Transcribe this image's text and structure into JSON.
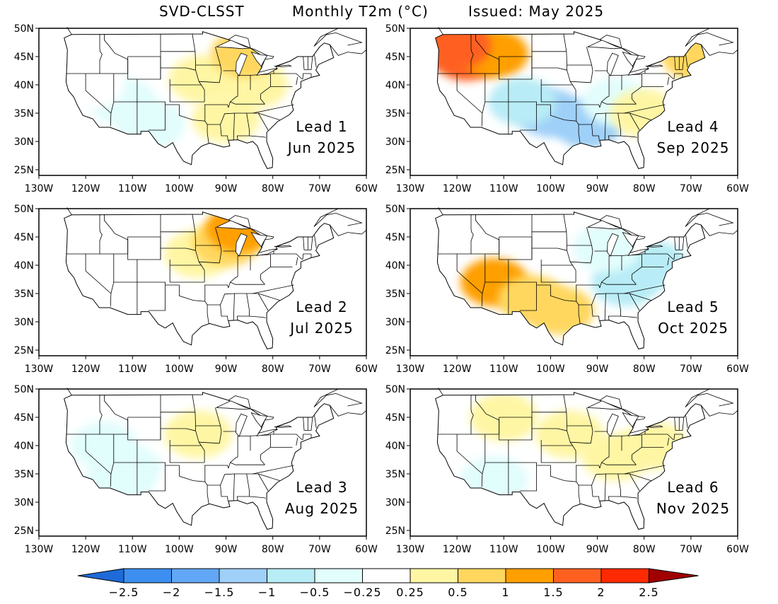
{
  "title": {
    "model": "SVD-CLSST",
    "variable": "Monthly T2m (°C)",
    "issued": "Issued: May 2025"
  },
  "axes": {
    "lon_ticks": [
      "130W",
      "120W",
      "110W",
      "100W",
      "90W",
      "80W",
      "70W",
      "60W"
    ],
    "lat_ticks": [
      "50N",
      "45N",
      "40N",
      "35N",
      "30N",
      "25N"
    ]
  },
  "panels": [
    {
      "lead_label": "Lead 1",
      "month_label": "Jun 2025",
      "anomalies": [
        {
          "lon": -112,
          "lat": 37,
          "value": -0.5
        },
        {
          "lon": -119,
          "lat": 40,
          "value": -0.25
        },
        {
          "lon": -106,
          "lat": 33,
          "value": -0.5
        },
        {
          "lon": -90,
          "lat": 34,
          "value": 0.25
        },
        {
          "lon": -84,
          "lat": 40,
          "value": 0.25
        },
        {
          "lon": -95,
          "lat": 41,
          "value": 0.25
        },
        {
          "lon": -86,
          "lat": 45.5,
          "value": 0.5
        }
      ]
    },
    {
      "lead_label": "Lead 2",
      "month_label": "Jul 2025",
      "anomalies": [
        {
          "lon": -96,
          "lat": 42,
          "value": 0.25
        },
        {
          "lon": -90,
          "lat": 44,
          "value": 0.5
        },
        {
          "lon": -119,
          "lat": 42,
          "value": -0.25
        },
        {
          "lon": -108,
          "lat": 36,
          "value": -0.25
        },
        {
          "lon": -87,
          "lat": 46.5,
          "value": 1
        }
      ]
    },
    {
      "lead_label": "Lead 3",
      "month_label": "Aug 2025",
      "anomalies": [
        {
          "lon": -116,
          "lat": 40,
          "value": -0.5
        },
        {
          "lon": -111,
          "lat": 36,
          "value": -0.5
        },
        {
          "lon": -113,
          "lat": 33.5,
          "value": -0.5
        },
        {
          "lon": -96,
          "lat": 42,
          "value": 0.25
        },
        {
          "lon": -72,
          "lat": 44,
          "value": -0.25
        }
      ]
    },
    {
      "lead_label": "Lead 4",
      "month_label": "Sep 2025",
      "anomalies": [
        {
          "lon": -118,
          "lat": 45,
          "value": 1.5
        },
        {
          "lon": -112,
          "lat": 45.5,
          "value": 1
        },
        {
          "lon": -120,
          "lat": 47,
          "value": 1.5
        },
        {
          "lon": -100,
          "lat": 35,
          "value": -1.5
        },
        {
          "lon": -92,
          "lat": 33,
          "value": -1.5
        },
        {
          "lon": -106,
          "lat": 37,
          "value": -1
        },
        {
          "lon": -86,
          "lat": 37,
          "value": -0.5
        },
        {
          "lon": -80,
          "lat": 35,
          "value": 0.25
        },
        {
          "lon": -69,
          "lat": 45,
          "value": 0.5
        }
      ]
    },
    {
      "lead_label": "Lead 5",
      "month_label": "Oct 2025",
      "anomalies": [
        {
          "lon": -112,
          "lat": 37,
          "value": 1
        },
        {
          "lon": -104,
          "lat": 34,
          "value": 0.5
        },
        {
          "lon": -98,
          "lat": 32,
          "value": 0.5
        },
        {
          "lon": -84,
          "lat": 37,
          "value": -1
        },
        {
          "lon": -78,
          "lat": 40,
          "value": -1
        },
        {
          "lon": -88,
          "lat": 43,
          "value": -0.5
        }
      ]
    },
    {
      "lead_label": "Lead 6",
      "month_label": "Nov 2025",
      "anomalies": [
        {
          "lon": -96,
          "lat": 42,
          "value": 0.25
        },
        {
          "lon": -86,
          "lat": 38,
          "value": 0.25
        },
        {
          "lon": -110,
          "lat": 45,
          "value": 0.25
        },
        {
          "lon": -112,
          "lat": 34,
          "value": -0.5
        },
        {
          "lon": -78,
          "lat": 40,
          "value": 0.25
        }
      ]
    }
  ],
  "colorbar": {
    "labels": [
      "-2.5",
      "-2",
      "-1.5",
      "-1",
      "-0.5",
      "-0.25",
      "0.25",
      "0.5",
      "1",
      "1.5",
      "2",
      "2.5"
    ],
    "colors": [
      "#1e6ad8",
      "#3c8ff0",
      "#62a7f5",
      "#9fd0f8",
      "#b8ecf6",
      "#e1fdfc",
      "#ffffff",
      "#fff6a4",
      "#ffd75e",
      "#ff9f00",
      "#ff6020",
      "#ff2a00",
      "#a00000"
    ]
  }
}
